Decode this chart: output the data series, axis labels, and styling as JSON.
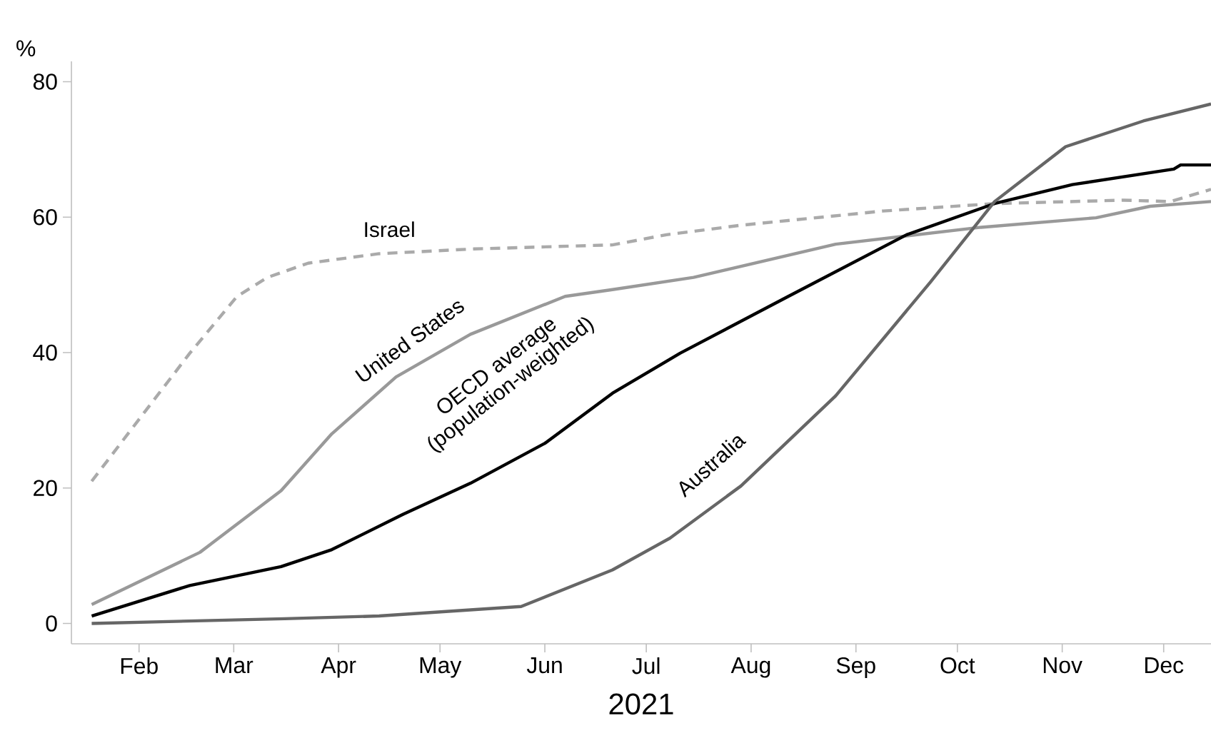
{
  "chart_data": {
    "type": "line",
    "xlabel": "2021",
    "ylabel": "%",
    "xlim": [
      "2021-01-12",
      "2021-12-15"
    ],
    "ylim": [
      -3,
      83
    ],
    "xticks": [
      {
        "value": "2021-02-01",
        "label": "Feb"
      },
      {
        "value": "2021-03-01",
        "label": "Mar"
      },
      {
        "value": "2021-04-01",
        "label": "Apr"
      },
      {
        "value": "2021-05-01",
        "label": "May"
      },
      {
        "value": "2021-06-01",
        "label": "Jun"
      },
      {
        "value": "2021-07-01",
        "label": "Jul"
      },
      {
        "value": "2021-08-01",
        "label": "Aug"
      },
      {
        "value": "2021-09-01",
        "label": "Sep"
      },
      {
        "value": "2021-10-01",
        "label": "Oct"
      },
      {
        "value": "2021-11-01",
        "label": "Nov"
      },
      {
        "value": "2021-12-01",
        "label": "Dec"
      }
    ],
    "yticks": [
      0,
      20,
      40,
      60,
      80
    ],
    "grid": false,
    "series": [
      {
        "name": "Israel",
        "color": "#aaaaaa",
        "line_style": "dashed",
        "x": [
          "2021-01-18",
          "2021-02-02",
          "2021-02-16",
          "2021-03-02",
          "2021-03-11",
          "2021-03-23",
          "2021-04-13",
          "2021-05-11",
          "2021-06-21",
          "2021-07-07",
          "2021-07-29",
          "2021-09-09",
          "2021-10-12",
          "2021-11-19",
          "2021-12-03",
          "2021-12-15"
        ],
        "values": [
          21.0,
          30.8,
          39.9,
          48.3,
          51.1,
          53.2,
          54.6,
          55.3,
          55.9,
          57.4,
          58.8,
          60.9,
          62.0,
          62.5,
          62.3,
          64.1
        ]
      },
      {
        "name": "United States",
        "color": "#999999",
        "line_style": "solid",
        "x": [
          "2021-01-18",
          "2021-02-19",
          "2021-03-15",
          "2021-03-30",
          "2021-04-18",
          "2021-05-10",
          "2021-06-07",
          "2021-06-21",
          "2021-07-15",
          "2021-08-26",
          "2021-10-08",
          "2021-11-11",
          "2021-11-27",
          "2021-12-15"
        ],
        "values": [
          2.8,
          10.5,
          19.6,
          28.0,
          36.4,
          42.7,
          48.3,
          49.3,
          51.1,
          56.0,
          58.5,
          59.9,
          61.6,
          62.3
        ]
      },
      {
        "name": "OECD average (population-weighted)",
        "color": "#000000",
        "line_style": "solid",
        "x": [
          "2021-01-18",
          "2021-02-16",
          "2021-03-15",
          "2021-03-30",
          "2021-04-20",
          "2021-05-10",
          "2021-06-01",
          "2021-06-21",
          "2021-07-11",
          "2021-08-12",
          "2021-09-16",
          "2021-10-12",
          "2021-11-04",
          "2021-12-04",
          "2021-12-06",
          "2021-12-15"
        ],
        "values": [
          1.1,
          5.6,
          8.4,
          10.9,
          16.1,
          20.7,
          26.6,
          34.0,
          39.9,
          48.3,
          57.4,
          62.0,
          64.8,
          67.1,
          67.7,
          67.7
        ]
      },
      {
        "name": "Australia",
        "color": "#666666",
        "line_style": "solid",
        "x": [
          "2021-01-18",
          "2021-03-16",
          "2021-04-13",
          "2021-05-25",
          "2021-06-21",
          "2021-07-08",
          "2021-07-29",
          "2021-08-26",
          "2021-09-23",
          "2021-10-12",
          "2021-11-02",
          "2021-11-25",
          "2021-12-15"
        ],
        "values": [
          0,
          0.7,
          1.1,
          2.5,
          7.9,
          12.6,
          20.3,
          33.6,
          50.4,
          62.3,
          70.4,
          74.2,
          76.7
        ]
      }
    ]
  }
}
